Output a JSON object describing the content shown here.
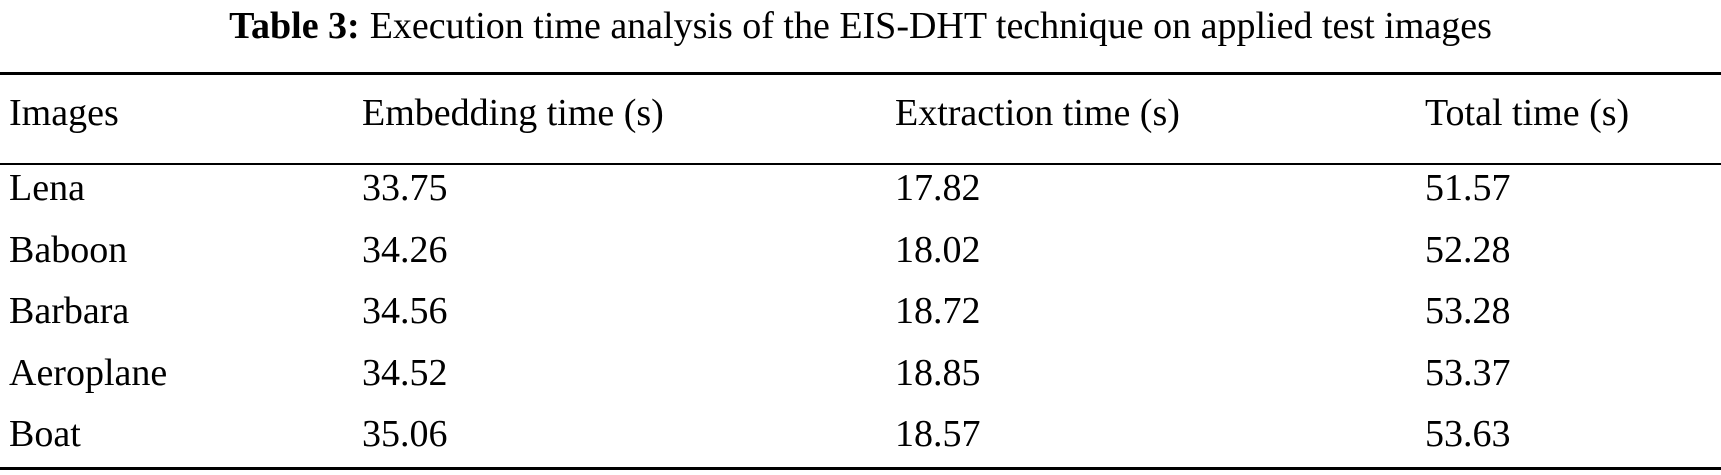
{
  "caption": {
    "label": "Table 3:",
    "text": "Execution time analysis of the EIS-DHT technique on applied test images"
  },
  "table": {
    "headers": [
      "Images",
      "Embedding time (s)",
      "Extraction time (s)",
      "Total time (s)"
    ],
    "rows": [
      [
        "Lena",
        "33.75",
        "17.82",
        "51.57"
      ],
      [
        "Baboon",
        "34.26",
        "18.02",
        "52.28"
      ],
      [
        "Barbara",
        "34.56",
        "18.72",
        "53.28"
      ],
      [
        "Aeroplane",
        "34.52",
        "18.85",
        "53.37"
      ],
      [
        "Boat",
        "35.06",
        "18.57",
        "53.63"
      ]
    ]
  }
}
